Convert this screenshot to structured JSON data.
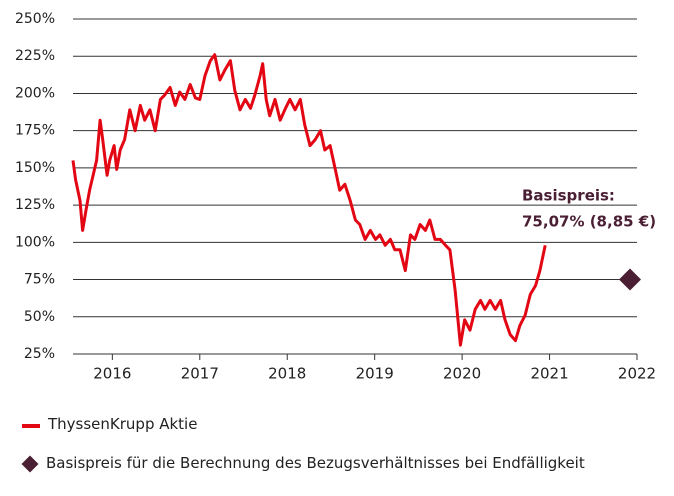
{
  "chart_data": {
    "type": "line",
    "ylim": [
      25,
      250
    ],
    "yticks": [
      {
        "value": 25,
        "label": "25%"
      },
      {
        "value": 50,
        "label": "50%"
      },
      {
        "value": 75,
        "label": "75%"
      },
      {
        "value": 100,
        "label": "100%"
      },
      {
        "value": 125,
        "label": "125%"
      },
      {
        "value": 150,
        "label": "150%"
      },
      {
        "value": 175,
        "label": "175%"
      },
      {
        "value": 200,
        "label": "200%"
      },
      {
        "value": 225,
        "label": "225%"
      },
      {
        "value": 250,
        "label": "250%"
      }
    ],
    "xlim": [
      2015.55,
      2022
    ],
    "xticks": [
      2016,
      2017,
      2018,
      2019,
      2020,
      2021,
      2022
    ],
    "grid": true,
    "annotation": [
      "Basispreis:",
      "75,07% (8,85 €)"
    ],
    "series": [
      {
        "name": "ThyssenKrupp Aktie",
        "color": "#e30613",
        "x": [
          2015.55,
          2015.58,
          2015.63,
          2015.66,
          2015.7,
          2015.74,
          2015.78,
          2015.82,
          2015.86,
          2015.89,
          2015.94,
          2015.97,
          2016.02,
          2016.05,
          2016.09,
          2016.14,
          2016.2,
          2016.26,
          2016.32,
          2016.37,
          2016.43,
          2016.49,
          2016.55,
          2016.6,
          2016.66,
          2016.72,
          2016.77,
          2016.83,
          2016.89,
          2016.95,
          2017.0,
          2017.06,
          2017.12,
          2017.17,
          2017.23,
          2017.29,
          2017.35,
          2017.4,
          2017.46,
          2017.52,
          2017.58,
          2017.63,
          2017.69,
          2017.72,
          2017.76,
          2017.8,
          2017.86,
          2017.92,
          2017.98,
          2018.03,
          2018.09,
          2018.15,
          2018.2,
          2018.26,
          2018.32,
          2018.38,
          2018.43,
          2018.49,
          2018.55,
          2018.6,
          2018.66,
          2018.72,
          2018.78,
          2018.83,
          2018.89,
          2018.95,
          2019.01,
          2019.06,
          2019.12,
          2019.18,
          2019.23,
          2019.29,
          2019.35,
          2019.41,
          2019.46,
          2019.52,
          2019.58,
          2019.63,
          2019.69,
          2019.75,
          2019.81,
          2019.86,
          2019.92,
          2019.98,
          2020.03,
          2020.09,
          2020.15,
          2020.21,
          2020.26,
          2020.32,
          2020.38,
          2020.44,
          2020.49,
          2020.55,
          2020.61,
          2020.66,
          2020.72,
          2020.78,
          2020.84,
          2020.89,
          2020.95
        ],
        "values": [
          155,
          142,
          128,
          108,
          122,
          135,
          145,
          155,
          182,
          169,
          145,
          155,
          165,
          149,
          162,
          169,
          189,
          175,
          192,
          182,
          189,
          175,
          196,
          199,
          204,
          192,
          201,
          196,
          206,
          197,
          196,
          212,
          222,
          226,
          209,
          216,
          222,
          202,
          189,
          196,
          190,
          199,
          212,
          220,
          196,
          185,
          196,
          182,
          190,
          196,
          189,
          196,
          179,
          165,
          169,
          175,
          162,
          165,
          149,
          135,
          139,
          128,
          115,
          112,
          102,
          108,
          102,
          105,
          98,
          102,
          95,
          95,
          81,
          105,
          102,
          112,
          108,
          115,
          102,
          102,
          98,
          95,
          68,
          31,
          48,
          41,
          55,
          61,
          55,
          61,
          55,
          61,
          48,
          38,
          34,
          44,
          51,
          65,
          71,
          81,
          98
        ]
      },
      {
        "name": "Basispreis für die Berechnung des Bezugsverhältnisses bei Endfälligkeit",
        "color": "#4a1f33",
        "marker": "diamond",
        "x": [
          2021.92
        ],
        "values": [
          75.07
        ]
      }
    ]
  }
}
